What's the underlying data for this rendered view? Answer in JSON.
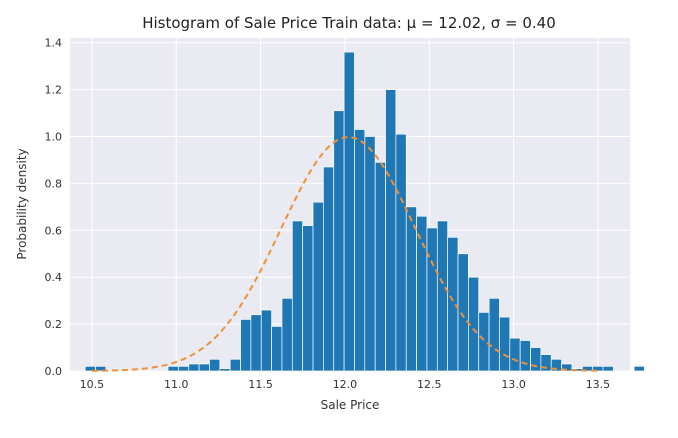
{
  "chart_data": {
    "type": "bar",
    "title": "Histogram of Sale Price Train data: μ = 12.02, σ = 0.40",
    "xlabel": "Sale Price",
    "ylabel": "Probability density",
    "xlim": [
      10.37,
      13.69
    ],
    "ylim": [
      0,
      1.42
    ],
    "grid": true,
    "xticks": [
      "10.5",
      "11.0",
      "11.5",
      "12.0",
      "12.5",
      "13.0",
      "13.5"
    ],
    "yticks": [
      "0.0",
      "0.2",
      "0.4",
      "0.6",
      "0.8",
      "1.0",
      "1.2",
      "1.4"
    ],
    "bin_start": 10.46,
    "bin_width": 0.0614,
    "values": [
      0.02,
      0.02,
      0,
      0,
      0,
      0,
      0,
      0,
      0.02,
      0.02,
      0.03,
      0.03,
      0.05,
      0.01,
      0.05,
      0.22,
      0.24,
      0.26,
      0.19,
      0.31,
      0.64,
      0.62,
      0.72,
      0.87,
      1.11,
      1.36,
      1.03,
      1.0,
      0.89,
      1.2,
      1.01,
      0.7,
      0.66,
      0.61,
      0.64,
      0.57,
      0.5,
      0.4,
      0.25,
      0.31,
      0.23,
      0.14,
      0.13,
      0.1,
      0.07,
      0.05,
      0.03,
      0.01,
      0.02,
      0.02,
      0.02,
      0,
      0,
      0.02
    ],
    "series": [
      {
        "type": "bar",
        "color": "#1f77b4"
      },
      {
        "type": "line",
        "name": "normal fit",
        "mu": 12.02,
        "sigma": 0.4,
        "color": "#f0913a",
        "style": "dashed"
      }
    ]
  }
}
